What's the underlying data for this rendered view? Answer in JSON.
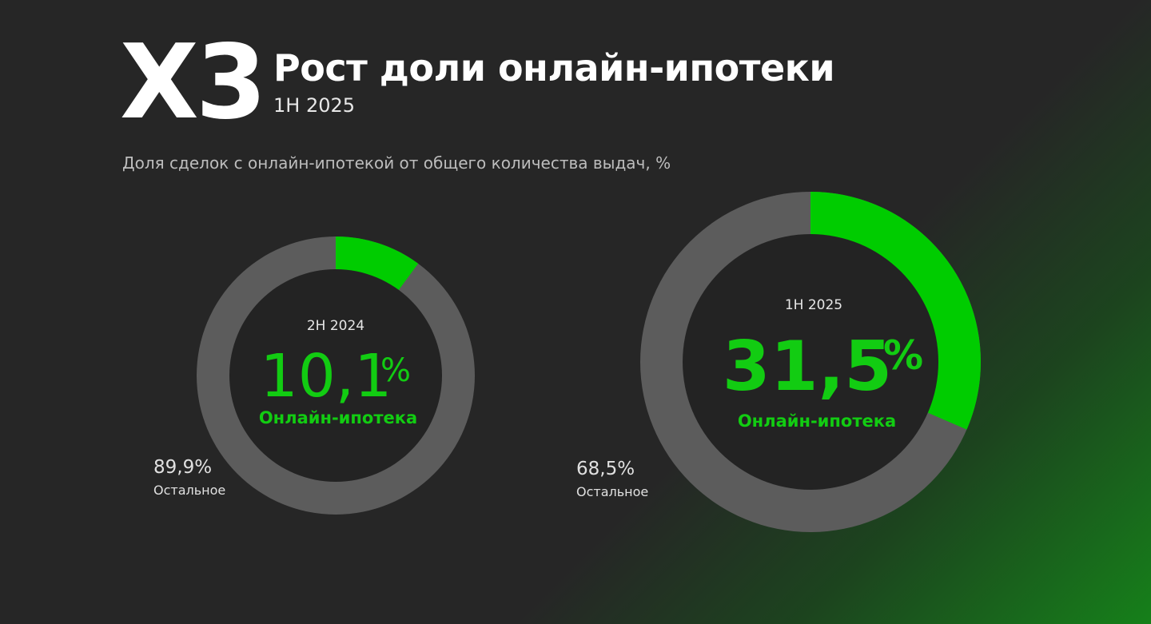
{
  "header": {
    "multiplier": "X3",
    "title": "Рост доли онлайн-ипотеки",
    "period": "1H 2025",
    "subtitle": "Доля сделок с онлайн-ипотекой от общего количества выдач, %"
  },
  "colors": {
    "background": "#262626",
    "online": "#00cc00",
    "rest": "#5c5c5c",
    "hole": "#232323"
  },
  "chart_data": [
    {
      "type": "pie",
      "period": "2H 2024",
      "slices": [
        {
          "label": "Онлайн-ипотека",
          "value": 10.1,
          "display": "10,1",
          "unit": "%"
        },
        {
          "label": "Остальное",
          "value": 89.9,
          "display": "89,9%"
        }
      ]
    },
    {
      "type": "pie",
      "period": "1H 2025",
      "slices": [
        {
          "label": "Онлайн-ипотека",
          "value": 31.5,
          "display": "31,5",
          "unit": "%"
        },
        {
          "label": "Остальное",
          "value": 68.5,
          "display": "68,5%"
        }
      ]
    }
  ]
}
